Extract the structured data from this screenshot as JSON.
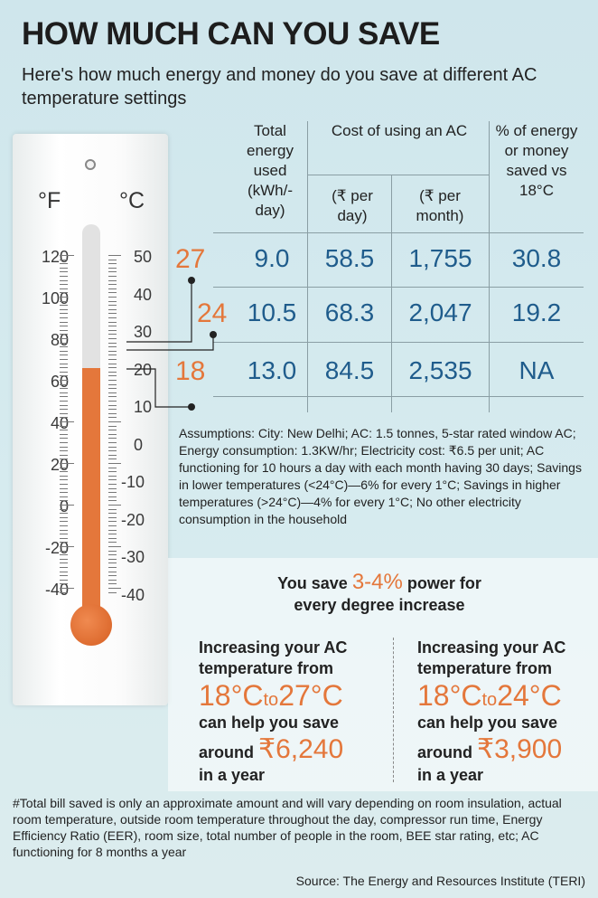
{
  "title": "HOW MUCH CAN YOU SAVE",
  "subtitle": "Here's how much energy and money do you save at different AC temperature settings",
  "thermometer": {
    "fahrenheit_unit": "°F",
    "celsius_unit": "°C",
    "fahrenheit_labels": [
      "120",
      "100",
      "80",
      "60",
      "40",
      "20",
      "0",
      "-20",
      "-40"
    ],
    "celsius_labels": [
      "50",
      "40",
      "30",
      "20",
      "10",
      "0",
      "-10",
      "-20",
      "-30",
      "-40"
    ],
    "fill_level_celsius": 20,
    "colors": {
      "fill": "#e4773b",
      "bulb": "#d65f22"
    }
  },
  "table": {
    "headers": {
      "energy": "Total energy used (kWh/-day)",
      "cost_group": "Cost of using an AC",
      "per_day": "(₹ per day)",
      "per_month": "(₹ per month)",
      "saved": "% of energy or money saved vs 18°C"
    },
    "rows": [
      {
        "temp": "27",
        "energy": "9.0",
        "per_day": "58.5",
        "per_month": "1,755",
        "saved": "30.8"
      },
      {
        "temp": "24",
        "energy": "10.5",
        "per_day": "68.3",
        "per_month": "2,047",
        "saved": "19.2"
      },
      {
        "temp": "18",
        "energy": "13.0",
        "per_day": "84.5",
        "per_month": "2,535",
        "saved": "NA"
      }
    ],
    "value_color": "#1f5c8c",
    "temp_color": "#e4773b"
  },
  "assumptions": "Assumptions: City: New Delhi; AC: 1.5 tonnes, 5-star rated window AC; Energy consumption: 1.3KW/hr; Electricity cost: ₹6.5 per unit; AC functioning for 10 hours a day with each month having 30 days; Savings in lower temperatures (<24°C)—6% for every 1°C; Savings in higher temperatures (>24°C)—4% for every 1°C; No other electricity consumption in the household",
  "savings": {
    "prefix": "You save",
    "percent": "3-4%",
    "suffix_line1": "power for",
    "line2": "every degree increase"
  },
  "scenarios": [
    {
      "intro": "Increasing your AC temperature from",
      "from": "18°C",
      "to_word": "to",
      "to": "27°C",
      "help": "can help you save",
      "around": "around",
      "amount": "₹6,240",
      "period": "in a year"
    },
    {
      "intro": "Increasing your AC temperature from",
      "from": "18°C",
      "to_word": "to",
      "to": "24°C",
      "help": "can help you save",
      "around": "around",
      "amount": "₹3,900",
      "period": "in a year"
    }
  ],
  "footnote": "#Total bill saved is only an approximate amount and will vary depending on room insulation, actual room temperature, outside room temperature throughout the day, compressor run time, Energy Efficiency Ratio (EER), room size, total number of people in the room, BEE star rating, etc; AC functioning for 8 months a year",
  "source": "Source: The Energy and Resources Institute (TERI)"
}
